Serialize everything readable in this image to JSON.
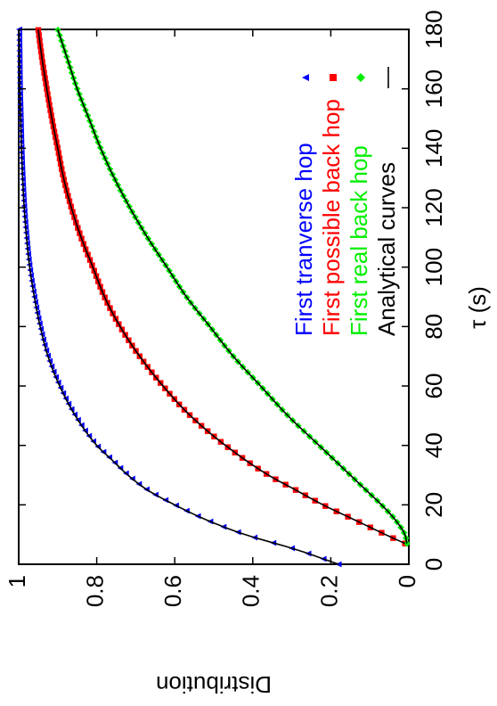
{
  "chart_data": {
    "type": "scatter",
    "title": "",
    "xlabel": "τ (s)",
    "ylabel": "Distribution",
    "xlim": [
      0,
      180
    ],
    "ylim": [
      0,
      1
    ],
    "x_ticks": [
      "0",
      "20",
      "40",
      "60",
      "80",
      "100",
      "120",
      "140",
      "160",
      "180"
    ],
    "y_ticks": [
      "0",
      "0.2",
      "0.4",
      "0.6",
      "0.8",
      "1"
    ],
    "x_tick_values": [
      0,
      20,
      40,
      60,
      80,
      100,
      120,
      140,
      160,
      180
    ],
    "y_tick_values": [
      0,
      0.2,
      0.4,
      0.6,
      0.8,
      1
    ],
    "grid": false,
    "orientation": "rotated 90 degrees counter-clockwise",
    "legend_position": "bottom-right",
    "series": [
      {
        "name": "First tranverse hop",
        "marker": "triangle",
        "color": "#0000ff",
        "x": [
          0,
          5,
          10,
          15,
          20,
          25,
          30,
          35,
          40,
          50,
          60,
          70,
          80,
          90,
          100,
          110,
          120,
          130,
          140,
          150,
          160,
          170,
          180
        ],
        "y": [
          0.18,
          0.29,
          0.42,
          0.52,
          0.6,
          0.67,
          0.72,
          0.76,
          0.8,
          0.855,
          0.895,
          0.925,
          0.945,
          0.96,
          0.972,
          0.98,
          0.986,
          0.99,
          0.993,
          0.995,
          0.997,
          0.998,
          0.999
        ]
      },
      {
        "name": "First possible back hop",
        "marker": "square",
        "color": "#ff0000",
        "x": [
          7,
          10,
          15,
          20,
          25,
          30,
          40,
          50,
          60,
          70,
          80,
          90,
          100,
          110,
          120,
          130,
          140,
          150,
          160,
          170,
          180
        ],
        "y": [
          0.01,
          0.06,
          0.14,
          0.22,
          0.29,
          0.36,
          0.47,
          0.56,
          0.63,
          0.69,
          0.74,
          0.78,
          0.81,
          0.84,
          0.865,
          0.885,
          0.9,
          0.915,
          0.928,
          0.94,
          0.95
        ]
      },
      {
        "name": "First real back hop",
        "marker": "diamond",
        "color": "#00ee00",
        "x": [
          7,
          10,
          15,
          20,
          25,
          30,
          40,
          50,
          60,
          70,
          80,
          90,
          100,
          110,
          120,
          130,
          140,
          150,
          160,
          170,
          180
        ],
        "y": [
          0.005,
          0.01,
          0.035,
          0.07,
          0.11,
          0.15,
          0.23,
          0.31,
          0.38,
          0.45,
          0.51,
          0.57,
          0.62,
          0.67,
          0.715,
          0.755,
          0.79,
          0.82,
          0.85,
          0.875,
          0.9
        ]
      },
      {
        "name": "Analytical curves",
        "marker": "line",
        "color": "#000000"
      }
    ]
  }
}
